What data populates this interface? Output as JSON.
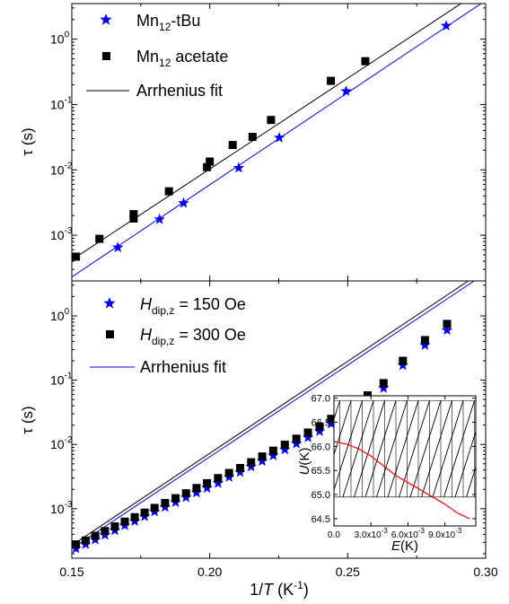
{
  "chart_data": [
    {
      "type": "scatter",
      "xlim": [
        0.15,
        0.3
      ],
      "ylim": [
        0.0002,
        3.5
      ],
      "yscale": "log",
      "ylabel": "τ (s)",
      "legend_position": "top-left",
      "series": [
        {
          "legend_main": "Mn",
          "legend_sub": "12",
          "legend_tail": "-tBu",
          "marker": "star",
          "color": "#0000ff",
          "x": [
            0.1667,
            0.1818,
            0.1905,
            0.2105,
            0.2252,
            0.2494,
            0.2857
          ],
          "y": [
            0.00065,
            0.00175,
            0.0031,
            0.0107,
            0.031,
            0.16,
            1.6
          ]
        },
        {
          "legend_main": "Mn",
          "legend_sub": "12",
          "legend_tail": " acetate",
          "marker": "square",
          "color": "#000000",
          "x": [
            0.1515,
            0.16,
            0.1724,
            0.1724,
            0.1852,
            0.199,
            0.2,
            0.2083,
            0.2155,
            0.2222,
            0.2439,
            0.2564
          ],
          "y": [
            0.00047,
            0.00088,
            0.0018,
            0.0021,
            0.0047,
            0.011,
            0.0134,
            0.024,
            0.032,
            0.058,
            0.23,
            0.46
          ]
        }
      ],
      "fits": [
        {
          "legend": "Arrhenius fit",
          "color": "#000000",
          "x": [
            0.15,
            0.3
          ],
          "y": [
            0.00042,
            6.2
          ]
        },
        {
          "color": "#0000ff",
          "x": [
            0.15,
            0.3
          ],
          "y": [
            0.00023,
            3.9
          ]
        }
      ]
    },
    {
      "type": "scatter",
      "xlim": [
        0.15,
        0.3
      ],
      "ylim": [
        0.00017,
        3.5
      ],
      "yscale": "log",
      "xlabel_main": "1/",
      "xlabel_italic": "T",
      "xlabel_unit": " (K",
      "xlabel_sup": "-1",
      "xlabel_close": ")",
      "ylabel": "τ (s)",
      "xticks": [
        "0.15",
        "0.20",
        "0.25",
        "0.30"
      ],
      "legend_position": "top-left",
      "series": [
        {
          "legend_var": "H",
          "legend_sub": "dip,z",
          "legend_tail": " = 150 Oe",
          "marker": "star",
          "color": "#0000ff",
          "x": [
            0.1515,
            0.155,
            0.1585,
            0.162,
            0.1656,
            0.1692,
            0.1728,
            0.1764,
            0.18,
            0.1838,
            0.1876,
            0.1914,
            0.1952,
            0.199,
            0.203,
            0.207,
            0.211,
            0.215,
            0.219,
            0.223,
            0.2272,
            0.2314,
            0.2356,
            0.2398,
            0.244,
            0.2484,
            0.2528,
            0.2572,
            0.263,
            0.27,
            0.278,
            0.286
          ],
          "y": [
            0.00024,
            0.00028,
            0.00033,
            0.00039,
            0.00046,
            0.00055,
            0.00064,
            0.00076,
            0.0009,
            0.00106,
            0.00126,
            0.0015,
            0.00178,
            0.0021,
            0.0025,
            0.0031,
            0.0037,
            0.0045,
            0.0055,
            0.0067,
            0.0083,
            0.0103,
            0.0128,
            0.016,
            0.021,
            0.027,
            0.036,
            0.048,
            0.075,
            0.17,
            0.35,
            0.6
          ]
        },
        {
          "legend_var": "H",
          "legend_sub": "dip,z",
          "legend_tail": " = 300 Oe",
          "marker": "square",
          "color": "#000000",
          "x": [
            0.1515,
            0.155,
            0.1585,
            0.162,
            0.1656,
            0.1692,
            0.1728,
            0.1764,
            0.18,
            0.1838,
            0.1876,
            0.1914,
            0.1952,
            0.199,
            0.203,
            0.207,
            0.211,
            0.215,
            0.219,
            0.223,
            0.2272,
            0.2314,
            0.2356,
            0.2398,
            0.244,
            0.2484,
            0.2528,
            0.2572,
            0.263,
            0.27,
            0.278,
            0.286
          ],
          "y": [
            0.00028,
            0.00032,
            0.00038,
            0.00045,
            0.00053,
            0.00063,
            0.00074,
            0.00087,
            0.00103,
            0.00123,
            0.00146,
            0.00174,
            0.0021,
            0.0025,
            0.003,
            0.0036,
            0.0043,
            0.0053,
            0.0065,
            0.008,
            0.0099,
            0.0123,
            0.0153,
            0.019,
            0.025,
            0.032,
            0.043,
            0.058,
            0.09,
            0.2,
            0.42,
            0.75
          ]
        }
      ],
      "fits": [
        {
          "legend": "Arrhenius fit",
          "color": "#0000ff",
          "x": [
            0.15,
            0.3
          ],
          "y": [
            0.00024,
            4.6
          ]
        },
        {
          "color": "#000000",
          "x": [
            0.15,
            0.3
          ],
          "y": [
            0.00027,
            5.3
          ]
        }
      ]
    },
    {
      "type": "line",
      "inset": true,
      "xlim": [
        0,
        0.0115
      ],
      "ylim": [
        64.35,
        67.05
      ],
      "xlabel": "E",
      "xlabel_unit": "(K)",
      "ylabel": "U",
      "ylabel_unit": "(K)",
      "yticks": [
        "67.0",
        "66.5",
        "66.0",
        "65.5",
        "65.0",
        "64.5"
      ],
      "yticks_values": [
        67.0,
        66.5,
        66.0,
        65.5,
        65.0,
        64.5
      ],
      "xticks": [
        {
          "main": "0.0",
          "exp": ""
        },
        {
          "main": "3.0x10",
          "exp": "-3"
        },
        {
          "main": "6.0x10",
          "exp": "-3"
        },
        {
          "main": "9.0x10",
          "exp": "-3"
        }
      ],
      "xticks_values": [
        0,
        0.003,
        0.006,
        0.009
      ],
      "hatch_region": {
        "ymin": 64.95,
        "ymax": 66.95
      },
      "series": [
        {
          "color": "#ff0000",
          "x": [
            0.0,
            0.001,
            0.002,
            0.003,
            0.004,
            0.005,
            0.006,
            0.007,
            0.008,
            0.009,
            0.01,
            0.011
          ],
          "y": [
            66.1,
            66.05,
            65.95,
            65.8,
            65.6,
            65.4,
            65.25,
            65.1,
            64.95,
            64.8,
            64.62,
            64.5
          ]
        }
      ]
    }
  ]
}
